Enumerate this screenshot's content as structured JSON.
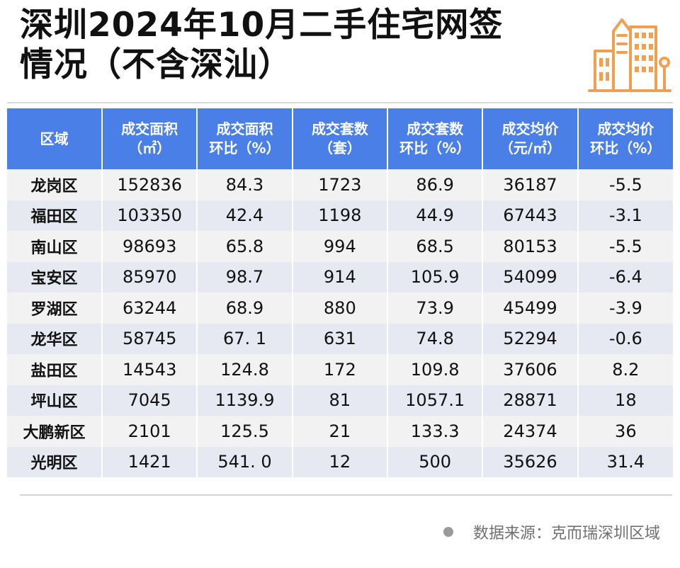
{
  "title": {
    "line1": "深圳2024年10月二手住宅网签",
    "line2": "情况（不含深汕）"
  },
  "icon": "building-icon",
  "colors": {
    "header_bg": "#4a7fe8",
    "row_odd": "#f2f2f2",
    "row_even": "#e6e9f2",
    "icon_accent": "#f0a050"
  },
  "table": {
    "headers": [
      {
        "line1": "区域",
        "line2": ""
      },
      {
        "line1": "成交面积",
        "line2": "（㎡）"
      },
      {
        "line1": "成交面积",
        "line2": "环比（%）"
      },
      {
        "line1": "成交套数",
        "line2": "（套）"
      },
      {
        "line1": "成交套数",
        "line2": "环比（%）"
      },
      {
        "line1": "成交均价",
        "line2": "（元/㎡）"
      },
      {
        "line1": "成交均价",
        "line2": "环比（%）"
      }
    ],
    "rows": [
      [
        "龙岗区",
        "152836",
        "84.3",
        "1723",
        "86.9",
        "36187",
        "-5.5"
      ],
      [
        "福田区",
        "103350",
        "42.4",
        "1198",
        "44.9",
        "67443",
        "-3.1"
      ],
      [
        "南山区",
        "98693",
        "65.8",
        "994",
        "68.5",
        "80153",
        "-5.5"
      ],
      [
        "宝安区",
        "85970",
        "98.7",
        "914",
        "105.9",
        "54099",
        "-6.4"
      ],
      [
        "罗湖区",
        "63244",
        "68.9",
        "880",
        "73.9",
        "45499",
        "-3.9"
      ],
      [
        "龙华区",
        "58745",
        "67. 1",
        "631",
        "74.8",
        "52294",
        "-0.6"
      ],
      [
        "盐田区",
        "14543",
        "124.8",
        "172",
        "109.8",
        "37606",
        "8.2"
      ],
      [
        "坪山区",
        "7045",
        "1139.9",
        "81",
        "1057.1",
        "28871",
        "18"
      ],
      [
        "大鹏新区",
        "2101",
        "125.5",
        "21",
        "133.3",
        "24374",
        "36"
      ],
      [
        "光明区",
        "1421",
        "541. 0",
        "12",
        "500",
        "35626",
        "31.4"
      ]
    ]
  },
  "source": "数据来源：克而瑞深圳区域"
}
